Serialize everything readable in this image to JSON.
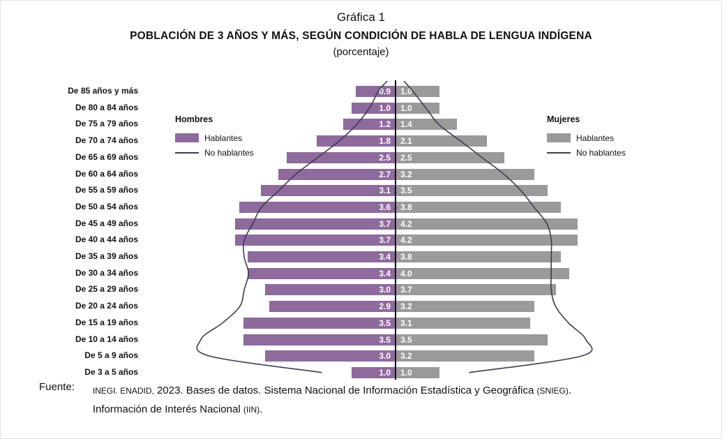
{
  "title": {
    "line1": "Gráfica 1",
    "line2": "POBLACIÓN DE 3 AÑOS Y MÁS, SEGÚN CONDICIÓN DE HABLA DE LENGUA INDÍGENA",
    "line3": "(porcentaje)"
  },
  "legend": {
    "hombres": {
      "title": "Hombres",
      "hablantes_label": "Hablantes",
      "no_hablantes_label": "No hablantes",
      "bar_color": "#8e6a9d",
      "line_color": "#3f3b52"
    },
    "mujeres": {
      "title": "Mujeres",
      "hablantes_label": "Hablantes",
      "no_hablantes_label": "No hablantes",
      "bar_color": "#9a9a9a",
      "line_color": "#3f3b52"
    }
  },
  "chart_data": {
    "type": "bar",
    "subtype": "population-pyramid",
    "title": "Gráfica 1",
    "subtitle": "POBLACIÓN DE 3 AÑOS Y MÁS, SEGÚN CONDICIÓN DE HABLA DE LENGUA INDÍGENA",
    "unit_label": "(porcentaje)",
    "categories": [
      "De 85 años y más",
      "De 80 a 84 años",
      "De 75 a 79 años",
      "De 70 a 74 años",
      "De 65 a 69 años",
      "De 60 a 64 años",
      "De 55 a 59 años",
      "De 50 a 54 años",
      "De 45 a 49 años",
      "De 40 a 44 años",
      "De 35 a 39 años",
      "De 30 a 34 años",
      "De 25 a 29 años",
      "De 20 a 24 años",
      "De 15 a 19 años",
      "De 10 a 14 años",
      "De 5 a 9 años",
      "De 3 a 5 años"
    ],
    "series": [
      {
        "name": "Hombres hablantes",
        "render": "bar",
        "side": "left",
        "color": "#8e6a9d",
        "values": [
          0.9,
          1.0,
          1.2,
          1.8,
          2.5,
          2.7,
          3.1,
          3.6,
          3.7,
          3.7,
          3.4,
          3.4,
          3.0,
          2.9,
          3.5,
          3.5,
          3.0,
          1.0
        ]
      },
      {
        "name": "Mujeres hablantes",
        "render": "bar",
        "side": "right",
        "color": "#9a9a9a",
        "values": [
          1.0,
          1.0,
          1.4,
          2.1,
          2.5,
          3.2,
          3.5,
          3.8,
          4.2,
          4.2,
          3.8,
          4.0,
          3.7,
          3.2,
          3.1,
          3.5,
          3.2,
          1.0
        ]
      },
      {
        "name": "Hombres no hablantes",
        "render": "line",
        "side": "left",
        "color": "#3f3b52",
        "values_estimated": true,
        "values": [
          0.4,
          0.6,
          0.9,
          1.3,
          1.8,
          2.3,
          2.7,
          3.1,
          3.3,
          3.5,
          3.5,
          3.4,
          3.5,
          3.6,
          4.0,
          4.5,
          4.3,
          1.7
        ]
      },
      {
        "name": "Mujeres no hablantes",
        "render": "line",
        "side": "right",
        "color": "#3f3b52",
        "values_estimated": true,
        "values": [
          0.4,
          0.7,
          1.0,
          1.5,
          2.0,
          2.5,
          2.9,
          3.2,
          3.5,
          3.6,
          3.6,
          3.6,
          3.6,
          3.7,
          4.0,
          4.4,
          4.3,
          1.7
        ]
      }
    ],
    "value_labels_shown": true,
    "axis_hidden": true,
    "xlim_percent_each_side": 5
  },
  "fuente": {
    "label": "Fuente:",
    "line1_segments": [
      {
        "text": "INEGI. ENADID,",
        "small": true
      },
      {
        "text": " 2023. Bases de datos. Sistema Nacional de Información Estadística y Geográfica ",
        "small": false
      },
      {
        "text": "(SNIEG)",
        "small": true
      },
      {
        "text": ".",
        "small": false
      }
    ],
    "line2_segments": [
      {
        "text": "Información de Interés Nacional ",
        "small": false
      },
      {
        "text": "(IIN)",
        "small": true
      },
      {
        "text": ".",
        "small": false
      }
    ]
  }
}
